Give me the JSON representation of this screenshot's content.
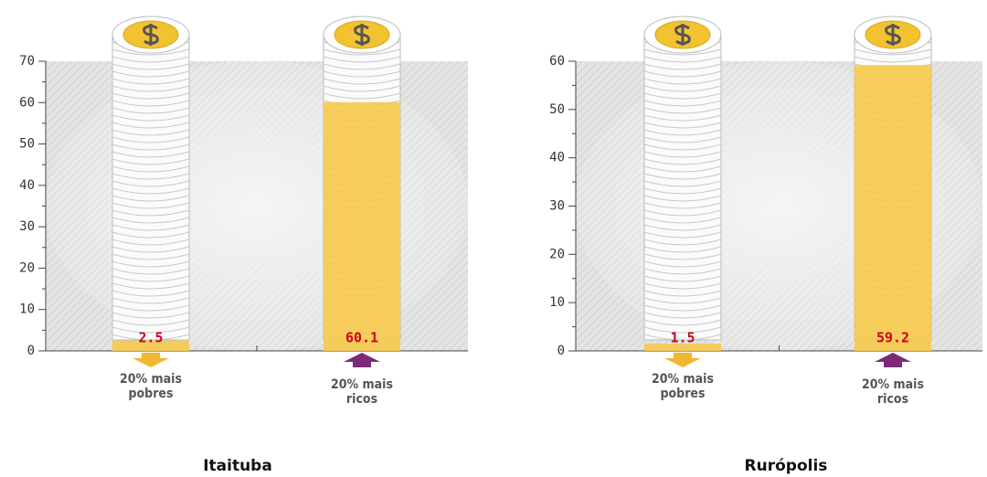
{
  "chart_data": [
    {
      "type": "bar",
      "title": "Itaituba",
      "categories": [
        "20% mais pobres",
        "20% mais ricos"
      ],
      "values": [
        2.5,
        60.1
      ],
      "color": "#f6c94a",
      "ylim": [
        0,
        70
      ],
      "yticks": [
        0,
        10,
        20,
        30,
        40,
        50,
        60,
        70
      ]
    },
    {
      "type": "bar",
      "title": "Rurópolis",
      "categories": [
        "20% mais pobres",
        "20% mais ricos"
      ],
      "values": [
        1.5,
        59.2
      ],
      "color": "#f6c94a",
      "ylim": [
        0,
        60
      ],
      "yticks": [
        0,
        10,
        20,
        30,
        40,
        50,
        60
      ]
    }
  ]
}
